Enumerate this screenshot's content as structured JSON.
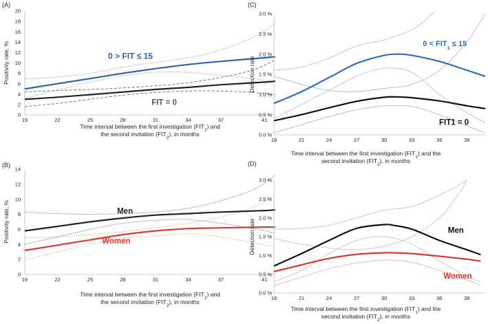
{
  "chart_data": [
    {
      "type": "line",
      "panel_label": "(A)",
      "ylabel": "Positivity rate, %",
      "xlabel_line1": "Time interval between the first investigation (FIT",
      "xlabel_line1_sub": "1",
      "xlabel_line1_end": ") and",
      "xlabel_line2": "the second invitation (FIT",
      "xlabel_line2_sub": "2",
      "xlabel_line2_end": "), in months",
      "xlim": [
        19,
        42
      ],
      "ylim": [
        0,
        20
      ],
      "x_ticks": [
        "19",
        "22",
        "25",
        "28",
        "31",
        "34",
        "37",
        "41"
      ],
      "y_ticks": [
        "0",
        "2",
        "4",
        "6",
        "8",
        "10",
        "12",
        "14",
        "16",
        "18",
        "20"
      ],
      "series": [
        {
          "name": "0 > FIT ≤ 15",
          "role": "main",
          "color": "#2b63a8",
          "x": [
            19,
            22,
            25,
            28,
            31,
            34,
            37,
            41,
            42
          ],
          "values": [
            5.0,
            6.0,
            7.0,
            8.0,
            8.9,
            9.7,
            10.3,
            11.0,
            11.2
          ]
        },
        {
          "name": "0 > FIT ≤ 15 upper CI",
          "role": "ci",
          "color": "#6f96d8",
          "x": [
            19,
            22,
            25,
            28,
            31,
            34,
            37,
            40,
            42
          ],
          "values": [
            6.9,
            7.3,
            8.0,
            9.2,
            10.1,
            11.0,
            12.5,
            15.0,
            17.6
          ]
        },
        {
          "name": "0 > FIT ≤ 15 lower CI",
          "role": "ci",
          "color": "#6f96d8",
          "x": [
            19,
            22,
            25,
            28,
            31,
            34,
            37,
            40,
            42
          ],
          "values": [
            3.2,
            4.8,
            6.3,
            7.5,
            8.2,
            8.2,
            7.6,
            7.0,
            6.2
          ]
        },
        {
          "name": "FIT = 0",
          "role": "main",
          "color": "#222222",
          "x": [
            19,
            22,
            25,
            28,
            31,
            34,
            37,
            41,
            42
          ],
          "values": [
            3.0,
            3.4,
            3.9,
            4.4,
            4.9,
            5.3,
            5.8,
            6.3,
            6.5
          ]
        },
        {
          "name": "FIT = 0 upper CI",
          "role": "ci",
          "color": "#666666",
          "x": [
            19,
            22,
            25,
            28,
            31,
            34,
            37,
            40,
            42
          ],
          "values": [
            4.4,
            4.7,
            4.9,
            5.2,
            5.6,
            6.2,
            7.2,
            8.7,
            10.6
          ]
        },
        {
          "name": "FIT = 0 lower CI",
          "role": "ci",
          "color": "#666666",
          "x": [
            19,
            22,
            25,
            28,
            31,
            34,
            37,
            40,
            42
          ],
          "values": [
            1.6,
            2.2,
            3.0,
            3.8,
            4.3,
            4.6,
            4.6,
            4.3,
            3.9
          ]
        }
      ],
      "annotations": [
        {
          "text": "0 > FIT ≤ 15",
          "color": "#2b63a8",
          "at_x": 28.7,
          "at_y": 10.8
        },
        {
          "text": "FIT = 0",
          "color": "#555555",
          "at_x": 31.8,
          "at_y": 1.9
        }
      ]
    },
    {
      "type": "line",
      "panel_label": "(B)",
      "ylabel": "Positivity rate, %",
      "xlabel_line1": "Time interval between the first investigation (FIT",
      "xlabel_line1_sub": "1",
      "xlabel_line1_end": ") and",
      "xlabel_line2": "the second invitation (FIT",
      "xlabel_line2_sub": "2",
      "xlabel_line2_end": "), in months",
      "xlim": [
        19,
        42
      ],
      "ylim": [
        0,
        14
      ],
      "x_ticks": [
        "19",
        "22",
        "25",
        "28",
        "31",
        "34",
        "37",
        "41"
      ],
      "y_ticks": [
        "0",
        "2",
        "4",
        "6",
        "8",
        "10",
        "12",
        "14"
      ],
      "series": [
        {
          "name": "Men",
          "role": "main",
          "color": "#222222",
          "x": [
            19,
            22,
            25,
            28,
            31,
            34,
            37,
            41,
            42
          ],
          "values": [
            5.8,
            6.4,
            7.0,
            7.5,
            7.9,
            8.1,
            8.3,
            8.5,
            8.6
          ]
        },
        {
          "name": "Men upper CI",
          "role": "ci",
          "color": "#5a6c8c",
          "x": [
            19,
            22,
            25,
            28,
            31,
            34,
            37,
            40,
            42
          ],
          "values": [
            8.3,
            8.1,
            8.0,
            8.1,
            8.3,
            8.8,
            9.8,
            11.3,
            13.2
          ]
        },
        {
          "name": "Men lower CI",
          "role": "ci",
          "color": "#5a6c8c",
          "x": [
            19,
            22,
            25,
            28,
            31,
            34,
            37,
            40,
            42
          ],
          "values": [
            4.0,
            5.0,
            6.0,
            6.8,
            7.2,
            7.3,
            6.8,
            6.1,
            5.5
          ]
        },
        {
          "name": "Women",
          "role": "main",
          "color": "#d83a30",
          "x": [
            19,
            22,
            25,
            28,
            31,
            34,
            37,
            41,
            42
          ],
          "values": [
            3.2,
            3.9,
            4.6,
            5.3,
            5.8,
            6.1,
            6.2,
            6.3,
            6.3
          ]
        },
        {
          "name": "Women upper CI",
          "role": "ci",
          "color": "#e8a060",
          "x": [
            19,
            22,
            25,
            28,
            31,
            34,
            37,
            40,
            42
          ],
          "values": [
            4.9,
            5.0,
            5.3,
            5.7,
            6.2,
            6.8,
            7.6,
            9.0,
            10.6
          ]
        },
        {
          "name": "Women lower CI",
          "role": "ci",
          "color": "#e8a060",
          "x": [
            19,
            22,
            25,
            28,
            31,
            34,
            37,
            40,
            42
          ],
          "values": [
            1.9,
            3.0,
            4.0,
            4.8,
            5.1,
            5.4,
            5.0,
            4.2,
            3.7
          ]
        }
      ],
      "annotations": [
        {
          "text": "Men",
          "color": "#222222",
          "at_x": 28.2,
          "at_y": 8.1
        },
        {
          "text": "Women",
          "color": "#d83a30",
          "at_x": 27.4,
          "at_y": 4.1
        }
      ]
    },
    {
      "type": "line",
      "panel_label": "(C)",
      "ylabel": "Detection rate",
      "xlabel_line1": "Time interval between the first investigation (FIT",
      "xlabel_line1_sub": "1",
      "xlabel_line1_end": ") and the",
      "xlabel_line2": "second invitation (FIT",
      "xlabel_line2_sub": "2",
      "xlabel_line2_end": "), in months",
      "xlim": [
        18,
        41
      ],
      "ylim": [
        0,
        3.0
      ],
      "x_ticks": [
        "18",
        "21",
        "24",
        "27",
        "30",
        "33",
        "36",
        "39"
      ],
      "y_ticks": [
        "0.0 %",
        "0.5 %",
        "1.0 %",
        "1.5 %",
        "2.0 %",
        "2.5 %",
        "3.0 %"
      ],
      "series": [
        {
          "name": "0 < FIT1 ≤ 15",
          "role": "main",
          "color": "#2a6cc0",
          "x": [
            18,
            21,
            24,
            27,
            30,
            31.5,
            33,
            36,
            39,
            41
          ],
          "values": [
            0.78,
            1.07,
            1.42,
            1.77,
            1.97,
            2.0,
            1.97,
            1.82,
            1.6,
            1.45
          ]
        },
        {
          "name": "0 < FIT1 ≤ 15 upper CI",
          "role": "ci",
          "color": "#a9c4e6",
          "x": [
            18,
            21,
            24,
            27,
            30,
            33,
            35,
            37
          ],
          "values": [
            1.6,
            1.68,
            1.9,
            2.2,
            2.35,
            2.6,
            2.95,
            3.4
          ]
        },
        {
          "name": "0 < FIT1 ≤ 15 lower CI",
          "role": "ci",
          "color": "#a9c4e6",
          "x": [
            18,
            21,
            24,
            27,
            30,
            33,
            36,
            39,
            41
          ],
          "values": [
            0.4,
            0.75,
            1.1,
            1.45,
            1.65,
            1.55,
            1.0,
            0.55,
            0.3
          ]
        },
        {
          "name": "FIT1 = 0",
          "role": "main",
          "color": "#111111",
          "x": [
            18,
            21,
            24,
            27,
            30,
            31.5,
            33,
            36,
            39,
            41
          ],
          "values": [
            0.35,
            0.5,
            0.67,
            0.83,
            0.93,
            0.94,
            0.92,
            0.84,
            0.72,
            0.65
          ]
        },
        {
          "name": "FIT1 = 0 upper CI",
          "role": "ci",
          "color": "#b7b7b7",
          "x": [
            18,
            21,
            24,
            27,
            30,
            33,
            36,
            39,
            41
          ],
          "values": [
            1.45,
            1.25,
            1.1,
            1.07,
            1.15,
            1.25,
            1.6,
            2.3,
            3.0
          ]
        },
        {
          "name": "FIT1 = 0 lower CI",
          "role": "ci",
          "color": "#b7b7b7",
          "x": [
            18,
            21,
            24,
            27,
            30,
            33,
            36,
            39,
            41
          ],
          "values": [
            0.05,
            0.25,
            0.45,
            0.62,
            0.72,
            0.7,
            0.5,
            0.22,
            0.05
          ]
        }
      ],
      "annotations": [
        {
          "text": "0 < FIT",
          "text_sub": "1",
          "text_end": " ≤ 15",
          "color": "#2a6cc0",
          "at_x": 36.6,
          "at_y": 2.2
        },
        {
          "text": "FIT1 = 0",
          "color": "#111111",
          "at_x": 37.6,
          "at_y": 0.25
        }
      ]
    },
    {
      "type": "line",
      "panel_label": "(D)",
      "ylabel": "Detection rate",
      "xlabel_line1": "Time interval between the first investigation (FIT",
      "xlabel_line1_sub": "1",
      "xlabel_line1_end": ") and the",
      "xlabel_line2": "second invitation (FIT",
      "xlabel_line2_sub": "2",
      "xlabel_line2_end": "), in months",
      "xlim": [
        18,
        41
      ],
      "ylim": [
        0,
        3.0
      ],
      "x_ticks": [
        "18",
        "21",
        "24",
        "27",
        "30",
        "33",
        "36",
        "39"
      ],
      "y_ticks": [
        "0.0 %",
        "0.5 %",
        "1.0 %",
        "1.5 %",
        "2.0 %",
        "2.5 %",
        "3.0 %"
      ],
      "series": [
        {
          "name": "Men",
          "role": "main",
          "color": "#111111",
          "x": [
            18,
            21,
            24,
            27,
            30,
            31,
            33,
            36,
            39,
            40.5
          ],
          "values": [
            0.72,
            1.05,
            1.4,
            1.72,
            1.82,
            1.8,
            1.7,
            1.4,
            1.15,
            1.02
          ]
        },
        {
          "name": "Men upper CI",
          "role": "ci",
          "color": "#c4c4c4",
          "x": [
            18,
            21,
            24,
            27,
            30,
            33,
            36,
            38,
            39
          ],
          "values": [
            1.7,
            1.72,
            1.8,
            2.0,
            2.2,
            2.3,
            2.6,
            2.85,
            3.0
          ]
        },
        {
          "name": "Men lower CI",
          "role": "ci",
          "color": "#c4c4c4",
          "x": [
            18,
            21,
            24,
            27,
            30,
            33,
            36,
            39,
            40.5
          ],
          "values": [
            0.3,
            0.6,
            1.05,
            1.4,
            1.5,
            1.3,
            0.85,
            0.45,
            0.3
          ]
        },
        {
          "name": "Women",
          "role": "main",
          "color": "#e0342a",
          "x": [
            18,
            21,
            24,
            27,
            30,
            31,
            33,
            36,
            39,
            40.5
          ],
          "values": [
            0.57,
            0.75,
            0.92,
            1.03,
            1.07,
            1.07,
            1.05,
            0.98,
            0.9,
            0.85
          ]
        },
        {
          "name": "Women upper CI",
          "role": "ci",
          "color": "#f2b0ac",
          "x": [
            18,
            21,
            24,
            27,
            30,
            33,
            36,
            38,
            39
          ],
          "values": [
            1.45,
            1.3,
            1.2,
            1.15,
            1.25,
            1.5,
            2.0,
            2.6,
            3.0
          ]
        },
        {
          "name": "Women lower CI",
          "role": "ci",
          "color": "#f2b0ac",
          "x": [
            18,
            21,
            24,
            27,
            30,
            33,
            36,
            39,
            40.5
          ],
          "values": [
            0.2,
            0.42,
            0.65,
            0.8,
            0.88,
            0.82,
            0.6,
            0.35,
            0.2
          ]
        }
      ],
      "annotations": [
        {
          "text": "Men",
          "color": "#111111",
          "at_x": 37.8,
          "at_y": 1.6
        },
        {
          "text": "Women",
          "color": "#e0342a",
          "at_x": 38.0,
          "at_y": 0.38
        }
      ]
    }
  ]
}
